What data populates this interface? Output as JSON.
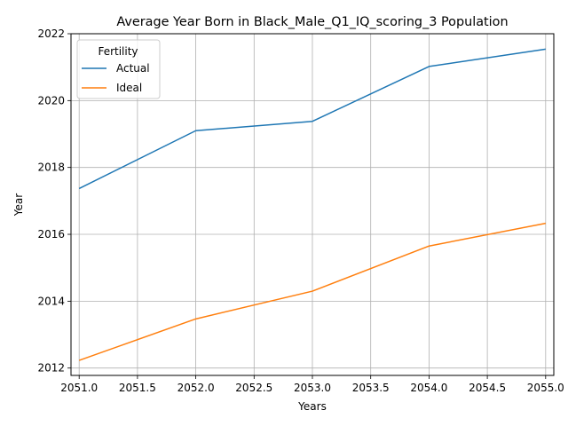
{
  "chart_data": {
    "type": "line",
    "title": "Average Year Born in Black_Male_Q1_IQ_scoring_3 Population",
    "xlabel": "Years",
    "ylabel": "Year",
    "x": [
      2051,
      2052,
      2053,
      2054,
      2055
    ],
    "xticks": [
      "2051.0",
      "2051.5",
      "2052.0",
      "2052.5",
      "2053.0",
      "2053.5",
      "2054.0",
      "2054.5",
      "2055.0"
    ],
    "yticks": [
      "2012",
      "2014",
      "2016",
      "2018",
      "2020",
      "2022"
    ],
    "xlim": [
      2050.93,
      2055.07
    ],
    "ylim": [
      2011.78,
      2022.0
    ],
    "grid": true,
    "legend": {
      "title": "Fertility",
      "placement": "top-left"
    },
    "series": [
      {
        "name": "Actual",
        "color": "#1f77b4",
        "values": [
          2017.37,
          2019.1,
          2019.38,
          2021.02,
          2021.54
        ]
      },
      {
        "name": "Ideal",
        "color": "#ff7f0e",
        "values": [
          2012.23,
          2013.47,
          2014.3,
          2015.65,
          2016.33
        ]
      }
    ]
  }
}
